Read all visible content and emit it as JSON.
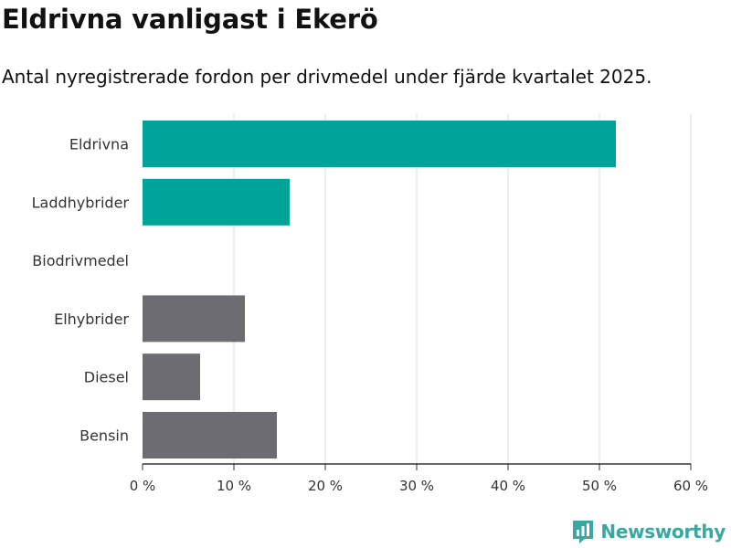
{
  "chart_data": {
    "type": "bar",
    "orientation": "horizontal",
    "title": "Eldrivna vanligast i Ekerö",
    "subtitle": "Antal nyregistrerade fordon per drivmedel under fjärde kvartalet 2025.",
    "categories": [
      "Eldrivna",
      "Laddhybrider",
      "Biodrivmedel",
      "Elhybrider",
      "Diesel",
      "Bensin"
    ],
    "values": [
      51.8,
      16.1,
      0,
      11.2,
      6.3,
      14.7
    ],
    "colors": [
      "#00a398",
      "#00a398",
      "#00a398",
      "#6d6c73",
      "#6d6c73",
      "#6d6c73"
    ],
    "xlim": [
      0,
      60
    ],
    "xticks": [
      0,
      10,
      20,
      30,
      40,
      50,
      60
    ],
    "xtick_labels": [
      "0 %",
      "10 %",
      "20 %",
      "30 %",
      "40 %",
      "50 %",
      "60 %"
    ],
    "xlabel": "",
    "ylabel": "",
    "grid": "vertical"
  },
  "brand": {
    "name": "Newsworthy",
    "color": "#3aa7a0"
  }
}
